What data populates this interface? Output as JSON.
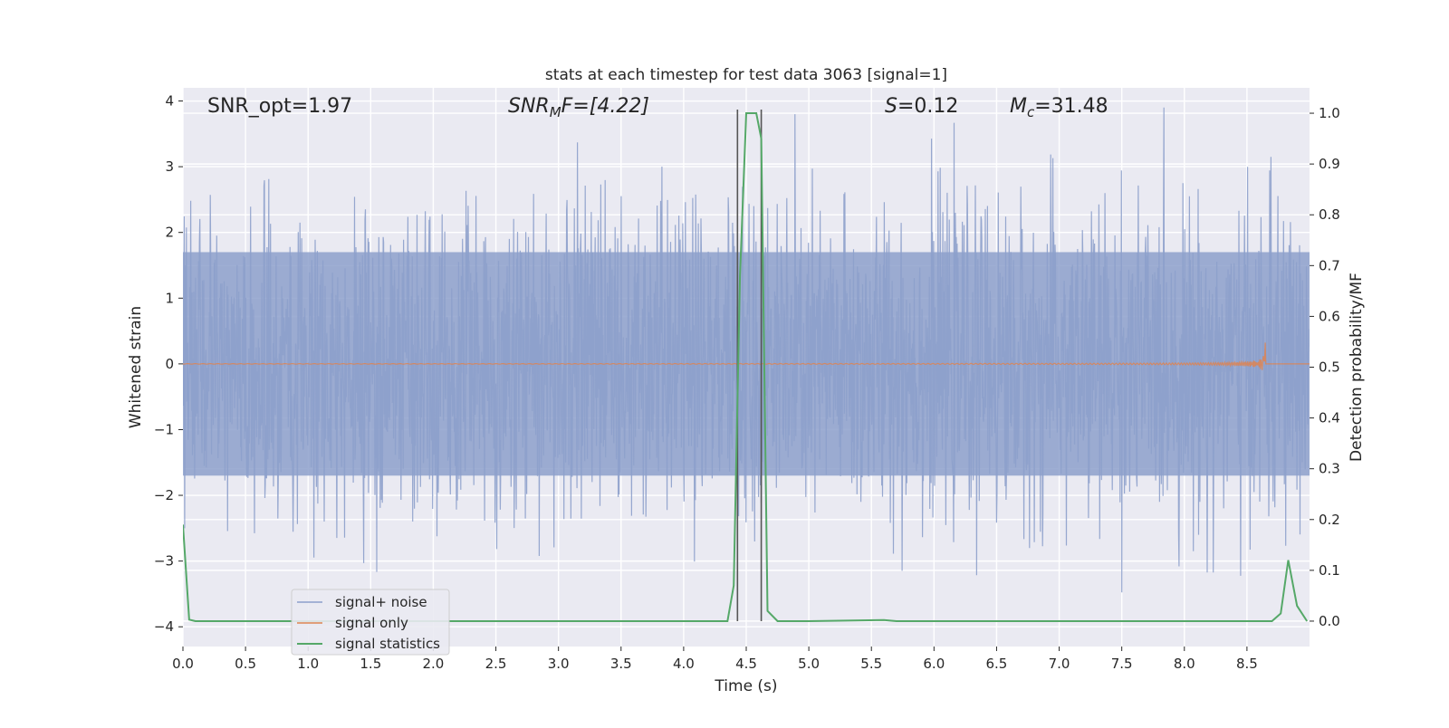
{
  "chart_data": {
    "type": "line",
    "title": "stats at each timestep for test data 3063 [signal=1]",
    "xlabel": "Time (s)",
    "ylabel": "Whitened strain",
    "y2label": "Detection probability/MF",
    "xlim": [
      0.0,
      9.0
    ],
    "ylim": [
      -4.3,
      4.2
    ],
    "y2lim": [
      -0.05,
      1.05
    ],
    "x_ticks": [
      "0.0",
      "0.5",
      "1.0",
      "1.5",
      "2.0",
      "2.5",
      "3.0",
      "3.5",
      "4.0",
      "4.5",
      "5.0",
      "5.5",
      "6.0",
      "6.5",
      "7.0",
      "7.5",
      "8.0",
      "8.5"
    ],
    "y_ticks": [
      "-4",
      "-3",
      "-2",
      "-1",
      "0",
      "1",
      "2",
      "3",
      "4"
    ],
    "y2_ticks": [
      "0.0",
      "0.1",
      "0.2",
      "0.3",
      "0.4",
      "0.5",
      "0.6",
      "0.7",
      "0.8",
      "0.9",
      "1.0"
    ],
    "grid": true,
    "legend_position": "lower-left",
    "annotations": {
      "snr_opt": "SNR_opt=1.97",
      "snr_mf_sym": "SNR",
      "snr_mf_sub": "M",
      "snr_mf_rest": "F=[4.22]",
      "s_sym": "S",
      "s_rest": "=0.12",
      "mc_sym": "M",
      "mc_sub": "c",
      "mc_rest": "=31.48"
    },
    "vertical_lines_x": [
      4.43,
      4.62
    ],
    "series": [
      {
        "name": "signal+ noise",
        "color": "#8da0cb",
        "axis": "left",
        "description_values": "whitened noise trace spanning approx -3.9 to 3.9 across 0-9 s",
        "band": [
          -1.7,
          1.7
        ],
        "seed": 3063
      },
      {
        "name": "signal only",
        "color": "#dd8452",
        "axis": "left",
        "chirp_peak_time": 8.65,
        "chirp_peak_amplitude": 0.45
      },
      {
        "name": "signal statistics",
        "color": "#55a868",
        "axis": "right",
        "x": [
          0.0,
          0.05,
          0.1,
          0.2,
          4.35,
          4.4,
          4.45,
          4.5,
          4.58,
          4.62,
          4.67,
          4.75,
          5.0,
          5.6,
          5.7,
          8.7,
          8.77,
          8.83,
          8.9,
          8.98
        ],
        "y": [
          0.19,
          0.003,
          0.0,
          0.0,
          0.0,
          0.07,
          0.68,
          1.0,
          1.0,
          0.95,
          0.02,
          0.0,
          0.0,
          0.002,
          0.0,
          0.0,
          0.015,
          0.12,
          0.03,
          0.0
        ]
      }
    ]
  }
}
